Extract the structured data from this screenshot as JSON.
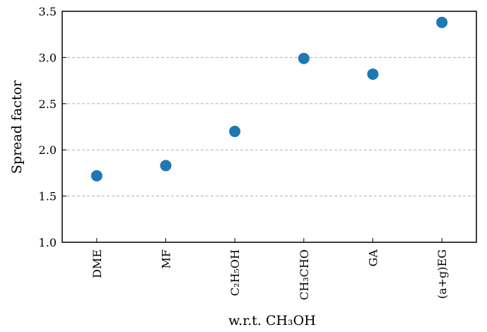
{
  "chart_data": {
    "type": "scatter",
    "categories": [
      "DME",
      "MF",
      "C₂H₅OH",
      "CH₃CHO",
      "GA",
      "(a+g)EG"
    ],
    "values": [
      1.72,
      1.83,
      2.2,
      2.99,
      2.82,
      3.38
    ],
    "color": "#1f77b4",
    "xlabel": "w.r.t. CH₃OH",
    "ylabel": "Spread factor",
    "ylim": [
      1.0,
      3.5
    ],
    "yticks": [
      {
        "value": 1.0,
        "label": "1.0"
      },
      {
        "value": 1.5,
        "label": "1.5"
      },
      {
        "value": 2.0,
        "label": "2.0"
      },
      {
        "value": 2.5,
        "label": "2.5"
      },
      {
        "value": 3.0,
        "label": "3.0"
      },
      {
        "value": 3.5,
        "label": "3.5"
      }
    ],
    "grid": true
  }
}
